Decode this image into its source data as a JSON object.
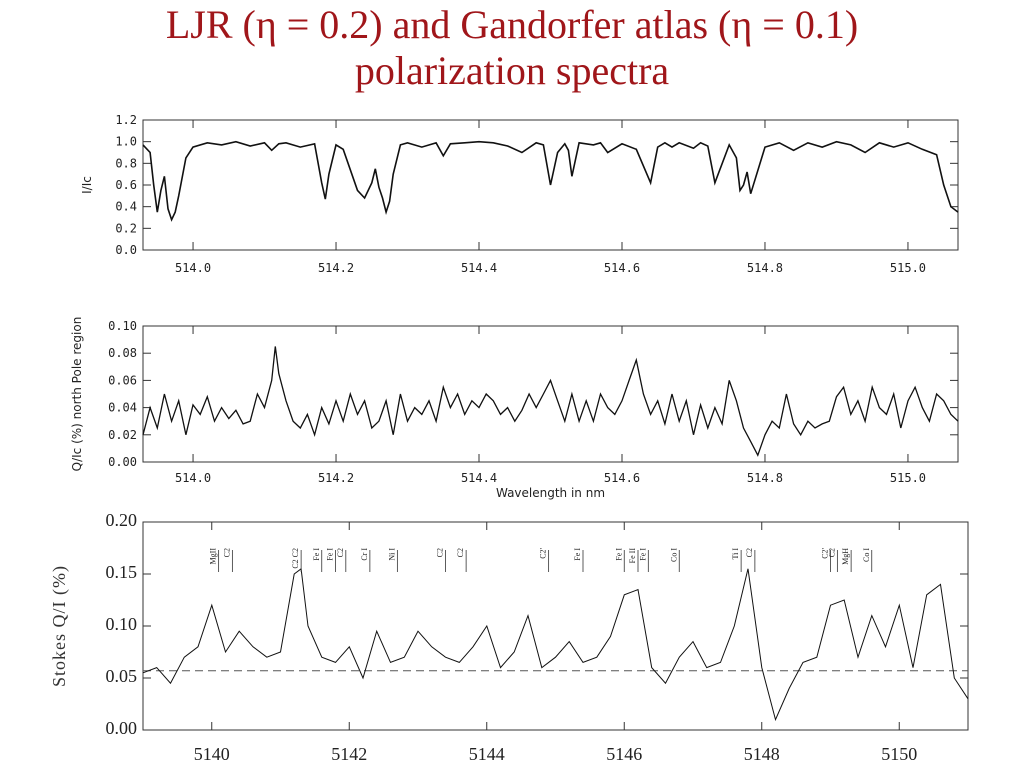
{
  "slide": {
    "title_line1": "LJR (η = 0.2) and Gandorfer atlas (η = 0.1)",
    "title_line2": "polarization spectra"
  },
  "chart_data": [
    {
      "type": "line",
      "ylabel": "I/Ic",
      "xlabel": "",
      "xlim": [
        513.93,
        515.07
      ],
      "ylim": [
        0.0,
        1.2
      ],
      "xticks": [
        "514.0",
        "514.2",
        "514.4",
        "514.6",
        "514.8",
        "515.0"
      ],
      "yticks": [
        "0.0",
        "0.2",
        "0.4",
        "0.6",
        "0.8",
        "1.0",
        "1.2"
      ],
      "series": [
        {
          "x": [
            513.93,
            513.94,
            513.945,
            513.95,
            513.955,
            513.96,
            513.965,
            513.97,
            513.975,
            513.98,
            513.99,
            514.0,
            514.02,
            514.04,
            514.06,
            514.08,
            514.1,
            514.11,
            514.12,
            514.13,
            514.15,
            514.17,
            514.18,
            514.185,
            514.19,
            514.2,
            514.21,
            514.23,
            514.24,
            514.25,
            514.255,
            514.26,
            514.265,
            514.27,
            514.275,
            514.28,
            514.29,
            514.3,
            514.32,
            514.34,
            514.35,
            514.36,
            514.38,
            514.4,
            514.42,
            514.44,
            514.46,
            514.48,
            514.49,
            514.5,
            514.51,
            514.52,
            514.525,
            514.53,
            514.54,
            514.56,
            514.57,
            514.58,
            514.6,
            514.62,
            514.64,
            514.65,
            514.66,
            514.67,
            514.68,
            514.7,
            514.71,
            514.72,
            514.73,
            514.75,
            514.76,
            514.765,
            514.77,
            514.775,
            514.78,
            514.8,
            514.82,
            514.84,
            514.86,
            514.88,
            514.9,
            514.92,
            514.94,
            514.96,
            514.98,
            515.0,
            515.02,
            515.04,
            515.05,
            515.06,
            515.07
          ],
          "y": [
            0.97,
            0.9,
            0.6,
            0.35,
            0.55,
            0.68,
            0.38,
            0.28,
            0.35,
            0.5,
            0.85,
            0.95,
            0.99,
            0.97,
            1.0,
            0.96,
            0.99,
            0.92,
            0.98,
            0.99,
            0.95,
            0.98,
            0.62,
            0.47,
            0.7,
            0.97,
            0.93,
            0.55,
            0.48,
            0.62,
            0.75,
            0.58,
            0.48,
            0.35,
            0.45,
            0.7,
            0.97,
            0.99,
            0.95,
            0.99,
            0.87,
            0.98,
            0.99,
            1.0,
            0.99,
            0.96,
            0.9,
            0.99,
            0.97,
            0.6,
            0.9,
            0.98,
            0.92,
            0.68,
            0.99,
            0.97,
            0.99,
            0.9,
            0.98,
            0.93,
            0.62,
            0.95,
            0.99,
            0.95,
            0.99,
            0.94,
            0.99,
            0.96,
            0.62,
            0.97,
            0.85,
            0.55,
            0.6,
            0.72,
            0.52,
            0.95,
            0.99,
            0.92,
            0.99,
            0.95,
            1.0,
            0.97,
            0.9,
            0.99,
            0.95,
            0.99,
            0.93,
            0.88,
            0.6,
            0.4,
            0.35
          ]
        }
      ]
    },
    {
      "type": "line",
      "ylabel": "Q/Ic (%) north Pole region",
      "xlabel": "Wavelength in nm",
      "xlim": [
        513.93,
        515.07
      ],
      "ylim": [
        0.0,
        0.1
      ],
      "xticks": [
        "514.0",
        "514.2",
        "514.4",
        "514.6",
        "514.8",
        "515.0"
      ],
      "yticks": [
        "0.00",
        "0.02",
        "0.04",
        "0.06",
        "0.08",
        "0.10"
      ],
      "series": [
        {
          "x": [
            513.93,
            513.94,
            513.95,
            513.96,
            513.97,
            513.98,
            513.99,
            514.0,
            514.01,
            514.02,
            514.03,
            514.04,
            514.05,
            514.06,
            514.07,
            514.08,
            514.09,
            514.1,
            514.11,
            514.115,
            514.12,
            514.13,
            514.14,
            514.15,
            514.16,
            514.17,
            514.18,
            514.19,
            514.2,
            514.21,
            514.22,
            514.23,
            514.24,
            514.25,
            514.26,
            514.27,
            514.28,
            514.29,
            514.3,
            514.31,
            514.32,
            514.33,
            514.34,
            514.35,
            514.36,
            514.37,
            514.38,
            514.39,
            514.4,
            514.41,
            514.42,
            514.43,
            514.44,
            514.45,
            514.46,
            514.47,
            514.48,
            514.49,
            514.5,
            514.51,
            514.52,
            514.53,
            514.54,
            514.55,
            514.56,
            514.57,
            514.58,
            514.59,
            514.6,
            514.61,
            514.62,
            514.63,
            514.64,
            514.65,
            514.66,
            514.67,
            514.68,
            514.69,
            514.7,
            514.71,
            514.72,
            514.73,
            514.74,
            514.75,
            514.76,
            514.77,
            514.78,
            514.79,
            514.8,
            514.81,
            514.82,
            514.83,
            514.84,
            514.85,
            514.86,
            514.87,
            514.88,
            514.89,
            514.9,
            514.91,
            514.92,
            514.93,
            514.94,
            514.95,
            514.96,
            514.97,
            514.98,
            514.99,
            515.0,
            515.01,
            515.02,
            515.03,
            515.04,
            515.05,
            515.06,
            515.07
          ],
          "y": [
            0.02,
            0.04,
            0.025,
            0.05,
            0.03,
            0.045,
            0.02,
            0.042,
            0.035,
            0.048,
            0.03,
            0.04,
            0.032,
            0.038,
            0.028,
            0.03,
            0.05,
            0.04,
            0.06,
            0.085,
            0.065,
            0.045,
            0.03,
            0.025,
            0.035,
            0.02,
            0.04,
            0.028,
            0.045,
            0.03,
            0.05,
            0.035,
            0.045,
            0.025,
            0.03,
            0.045,
            0.02,
            0.05,
            0.03,
            0.04,
            0.035,
            0.045,
            0.03,
            0.055,
            0.04,
            0.05,
            0.035,
            0.045,
            0.04,
            0.05,
            0.045,
            0.035,
            0.04,
            0.03,
            0.038,
            0.05,
            0.04,
            0.05,
            0.06,
            0.045,
            0.03,
            0.05,
            0.03,
            0.045,
            0.03,
            0.05,
            0.04,
            0.035,
            0.045,
            0.06,
            0.075,
            0.05,
            0.035,
            0.045,
            0.028,
            0.05,
            0.03,
            0.045,
            0.02,
            0.042,
            0.025,
            0.04,
            0.028,
            0.06,
            0.045,
            0.025,
            0.015,
            0.005,
            0.02,
            0.03,
            0.025,
            0.05,
            0.028,
            0.02,
            0.03,
            0.025,
            0.028,
            0.03,
            0.048,
            0.055,
            0.035,
            0.045,
            0.03,
            0.055,
            0.04,
            0.035,
            0.05,
            0.025,
            0.045,
            0.055,
            0.04,
            0.03,
            0.05,
            0.045,
            0.035,
            0.03
          ]
        }
      ]
    },
    {
      "type": "line",
      "ylabel": "Stokes Q/I (%)",
      "xlabel": "",
      "xlim": [
        5139.0,
        5151.0
      ],
      "ylim": [
        0.0,
        0.2
      ],
      "xticks": [
        "5140",
        "5142",
        "5144",
        "5146",
        "5148",
        "5150"
      ],
      "yticks": [
        "0.00",
        "0.05",
        "0.10",
        "0.15",
        "0.20"
      ],
      "reference_level": 0.057,
      "line_ids": [
        "MgII",
        "C2",
        "C2 C2",
        "Fe I",
        "Fe I",
        "C2",
        "Cr I",
        "Ni I",
        "C2",
        "C2",
        "C2'",
        "Fe I",
        "Fe I",
        "Fe II",
        "Fe I",
        "Co I",
        "Ti I",
        "C2",
        "C2'",
        "C2",
        "MgH",
        "Co I"
      ],
      "line_id_positions": [
        5140.1,
        5140.3,
        5141.3,
        5141.6,
        5141.8,
        5141.95,
        5142.3,
        5142.7,
        5143.4,
        5143.7,
        5144.9,
        5145.4,
        5146.0,
        5146.2,
        5146.35,
        5146.8,
        5147.7,
        5147.9,
        5149.0,
        5149.1,
        5149.3,
        5149.6
      ],
      "series": [
        {
          "x": [
            5139.0,
            5139.2,
            5139.4,
            5139.6,
            5139.8,
            5140.0,
            5140.2,
            5140.4,
            5140.6,
            5140.8,
            5141.0,
            5141.2,
            5141.3,
            5141.4,
            5141.6,
            5141.8,
            5142.0,
            5142.2,
            5142.4,
            5142.6,
            5142.8,
            5143.0,
            5143.2,
            5143.4,
            5143.6,
            5143.8,
            5144.0,
            5144.2,
            5144.4,
            5144.6,
            5144.8,
            5145.0,
            5145.2,
            5145.4,
            5145.6,
            5145.8,
            5146.0,
            5146.2,
            5146.4,
            5146.6,
            5146.8,
            5147.0,
            5147.2,
            5147.4,
            5147.6,
            5147.8,
            5148.0,
            5148.2,
            5148.4,
            5148.6,
            5148.8,
            5149.0,
            5149.2,
            5149.4,
            5149.6,
            5149.8,
            5150.0,
            5150.2,
            5150.4,
            5150.6,
            5150.8,
            5151.0
          ],
          "y": [
            0.055,
            0.06,
            0.045,
            0.07,
            0.08,
            0.12,
            0.075,
            0.095,
            0.08,
            0.07,
            0.075,
            0.15,
            0.155,
            0.1,
            0.07,
            0.065,
            0.08,
            0.05,
            0.095,
            0.065,
            0.07,
            0.095,
            0.08,
            0.07,
            0.065,
            0.08,
            0.1,
            0.06,
            0.075,
            0.11,
            0.06,
            0.07,
            0.085,
            0.065,
            0.07,
            0.09,
            0.13,
            0.135,
            0.06,
            0.045,
            0.07,
            0.085,
            0.06,
            0.065,
            0.1,
            0.155,
            0.06,
            0.01,
            0.04,
            0.065,
            0.07,
            0.12,
            0.125,
            0.07,
            0.11,
            0.08,
            0.12,
            0.06,
            0.13,
            0.14,
            0.05,
            0.03
          ]
        }
      ]
    }
  ]
}
